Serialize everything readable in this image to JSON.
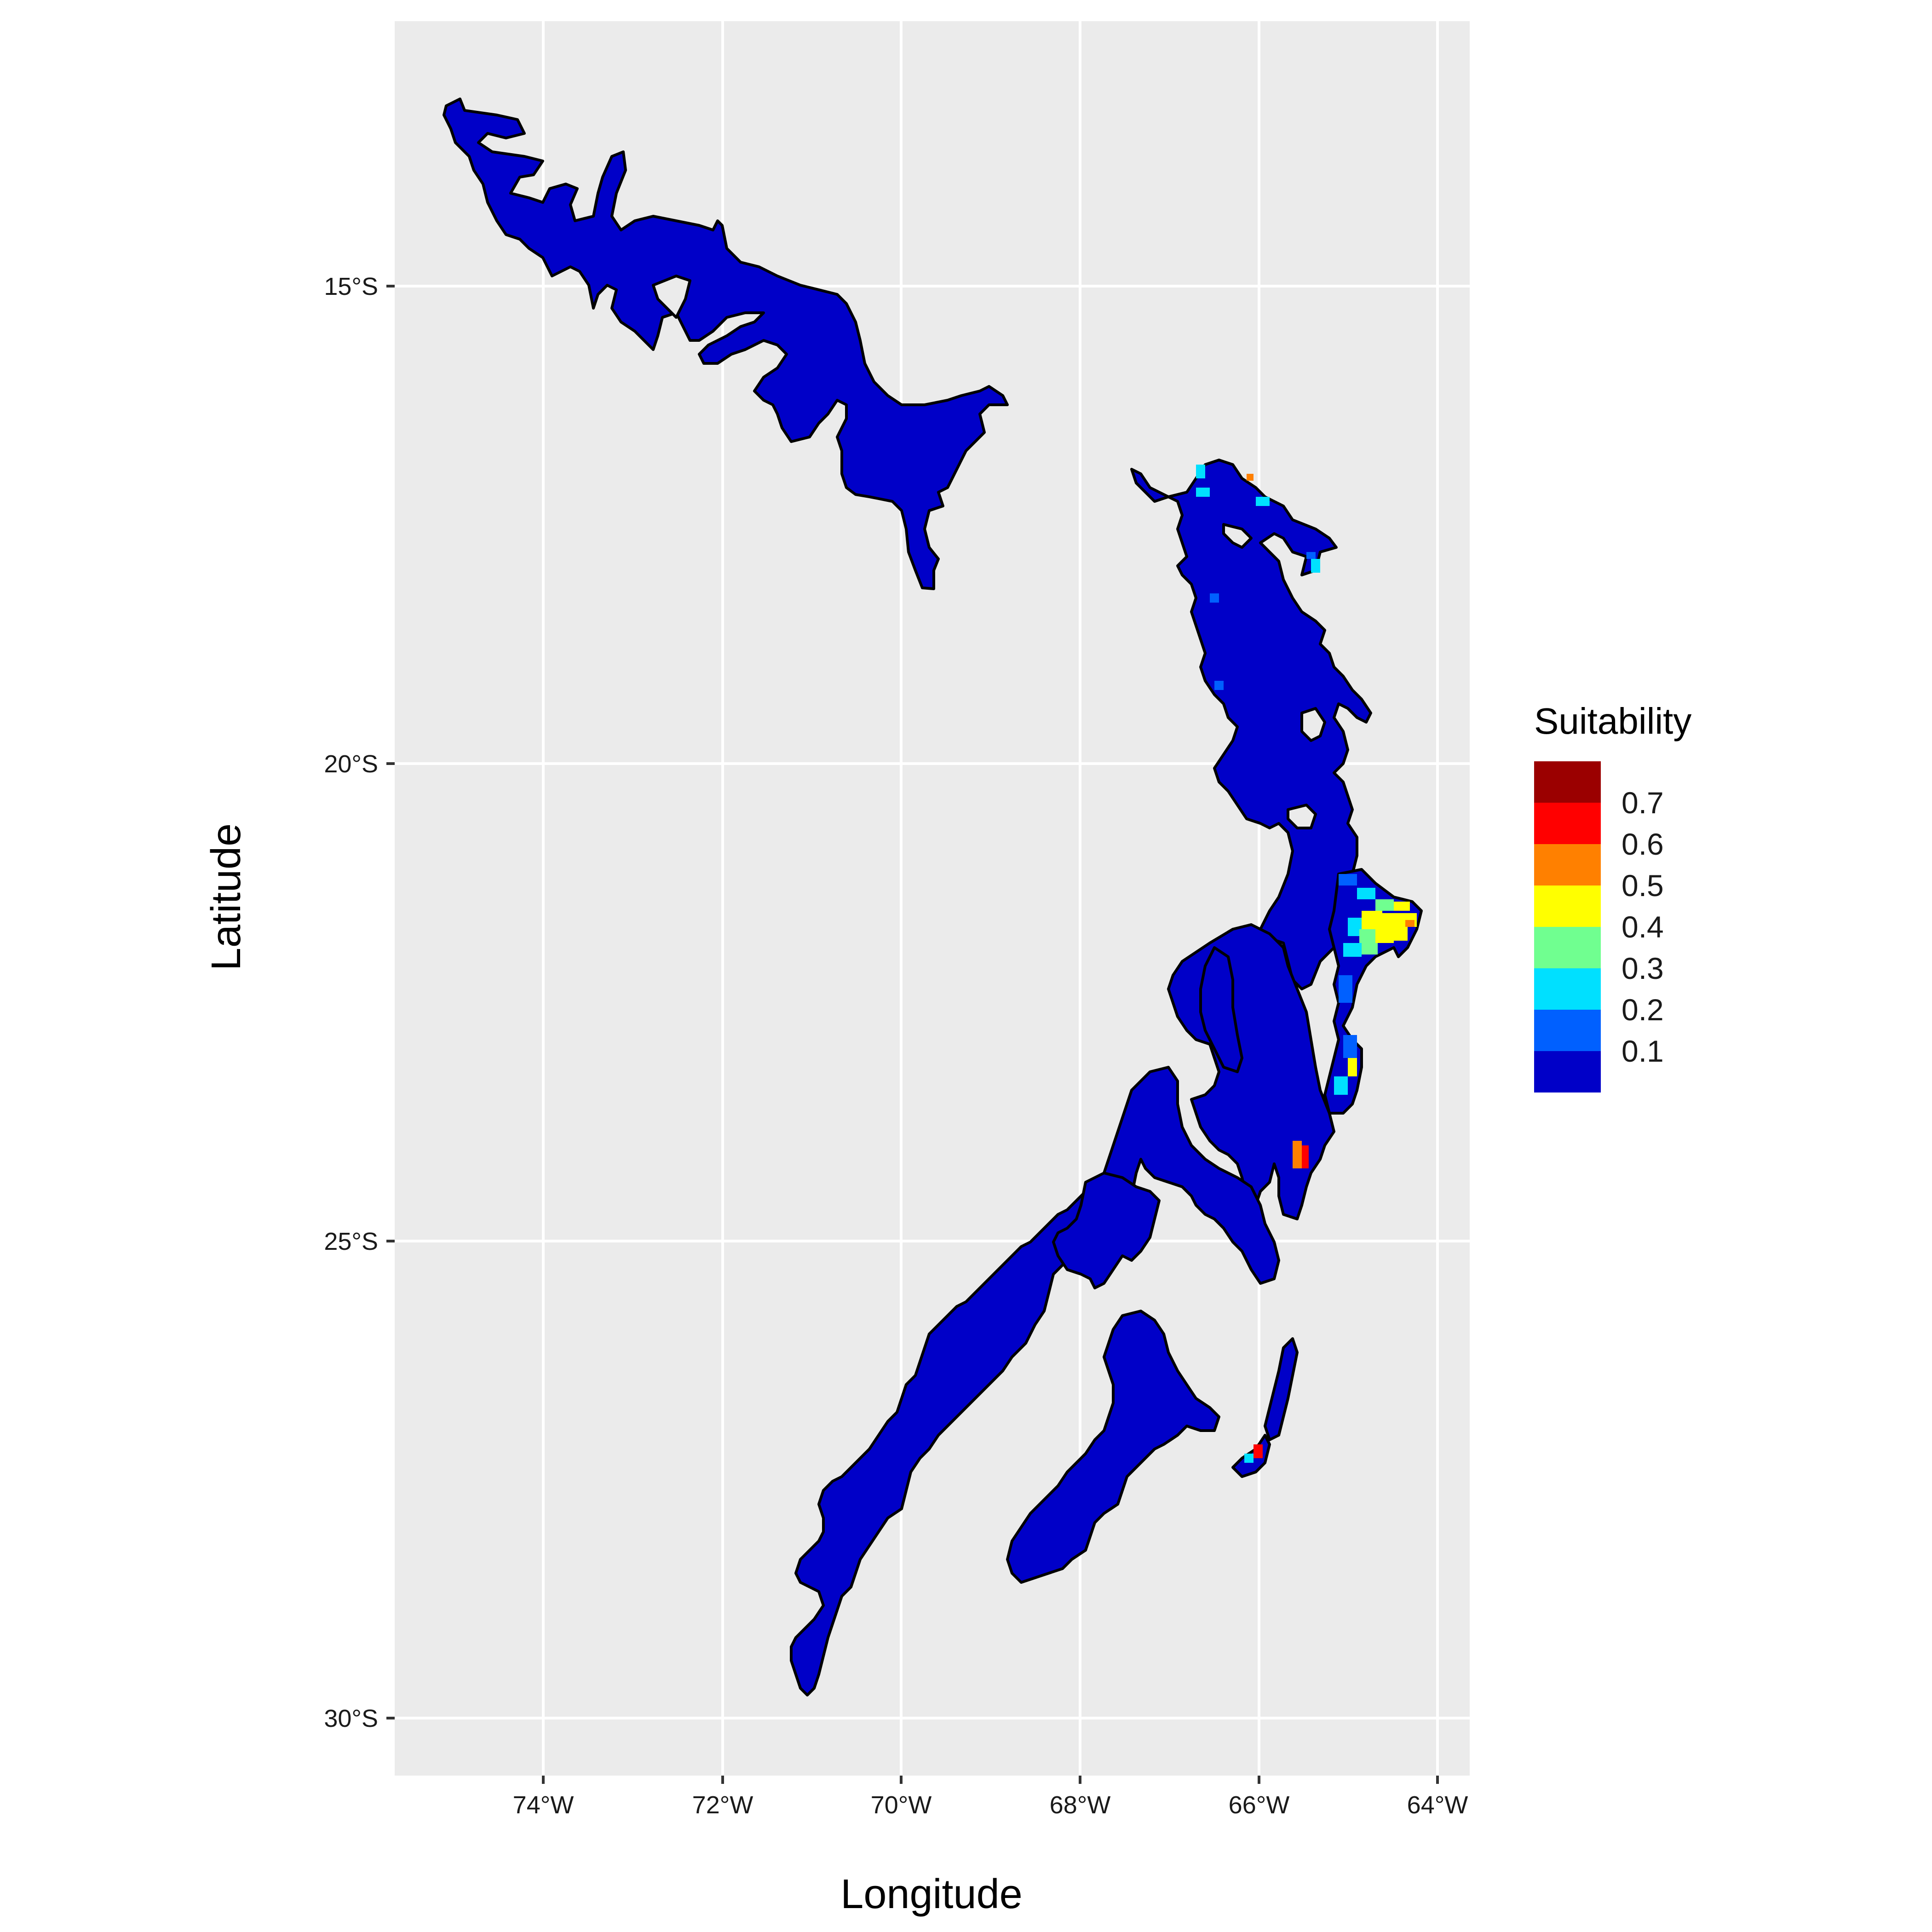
{
  "map": {
    "x_axis_title": "Longitude",
    "y_axis_title": "Latitude",
    "x_ticks": [
      {
        "value": -74,
        "label": "74°W"
      },
      {
        "value": -72,
        "label": "72°W"
      },
      {
        "value": -70,
        "label": "70°W"
      },
      {
        "value": -68,
        "label": "68°W"
      },
      {
        "value": -66,
        "label": "66°W"
      },
      {
        "value": -64,
        "label": "64°W"
      }
    ],
    "y_ticks": [
      {
        "value": -15,
        "label": "15°S"
      },
      {
        "value": -20,
        "label": "20°S"
      },
      {
        "value": -25,
        "label": "25°S"
      },
      {
        "value": -30,
        "label": "30°S"
      }
    ],
    "x_range": [
      -75.65,
      -63.6
    ],
    "y_range": [
      -30.55,
      -12.25
    ],
    "panel_background": "#ebebeb",
    "grid_color": "#ffffff",
    "land_color": "#0000c8",
    "outline_color": "#000000"
  },
  "legend": {
    "title": "Suitability",
    "labels": [
      "0.7",
      "0.6",
      "0.5",
      "0.4",
      "0.3",
      "0.2",
      "0.1"
    ],
    "colors": [
      "#9b0000",
      "#ff0000",
      "#ff8000",
      "#ffff00",
      "#70ff90",
      "#00e0ff",
      "#0060ff",
      "#0000c8"
    ]
  }
}
